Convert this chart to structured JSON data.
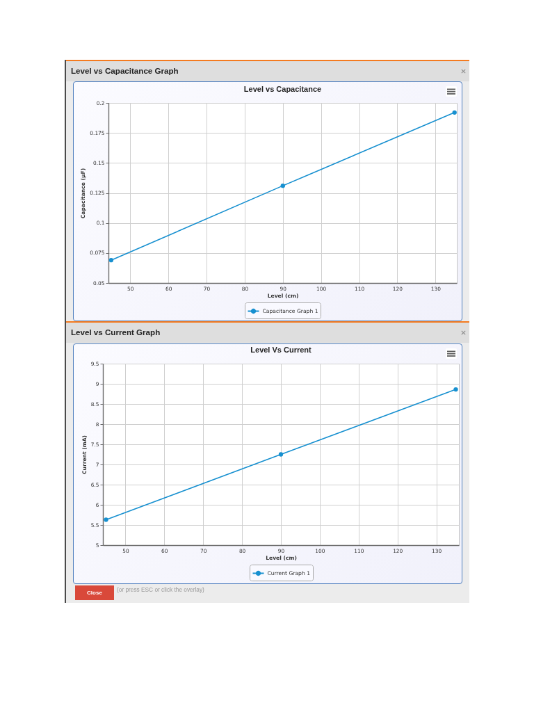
{
  "chart_data": [
    {
      "type": "line",
      "title": "Level vs Capacitance Graph",
      "subtitle": "Level vs Capacitance",
      "xlabel": "Level (cm)",
      "ylabel": "Capacitance (μF)",
      "x": [
        45,
        90,
        135
      ],
      "series": [
        {
          "name": "Capacitance Graph 1",
          "color": "#1790d0",
          "values": [
            0.069,
            0.131,
            0.192
          ]
        }
      ],
      "xlim": [
        44.3,
        135.6
      ],
      "xticks": [
        50,
        60,
        70,
        80,
        90,
        100,
        110,
        120,
        130
      ],
      "ylim": [
        0.05,
        0.2
      ],
      "yticks": [
        0.05,
        0.075,
        0.1,
        0.125,
        0.15,
        0.175,
        0.2
      ],
      "grid": true,
      "legend": "bottom",
      "marker": "circle"
    },
    {
      "type": "line",
      "title": "Level vs Current Graph",
      "subtitle": "Level Vs Current",
      "xlabel": "Level (cm)",
      "ylabel": "Current (mA)",
      "x": [
        45,
        90,
        135
      ],
      "series": [
        {
          "name": "Current Graph 1",
          "color": "#1790d0",
          "values": [
            5.63,
            7.25,
            8.86
          ]
        }
      ],
      "xlim": [
        44.2,
        135.8
      ],
      "xticks": [
        50,
        60,
        70,
        80,
        90,
        100,
        110,
        120,
        130
      ],
      "ylim": [
        5,
        9.5
      ],
      "yticks": [
        5,
        5.5,
        6,
        6.5,
        7,
        7.5,
        8,
        8.5,
        9,
        9.5
      ],
      "grid": true,
      "legend": "bottom",
      "marker": "circle",
      "annotations": [
        "Close",
        "(or press ESC or click the overlay)"
      ]
    }
  ]
}
